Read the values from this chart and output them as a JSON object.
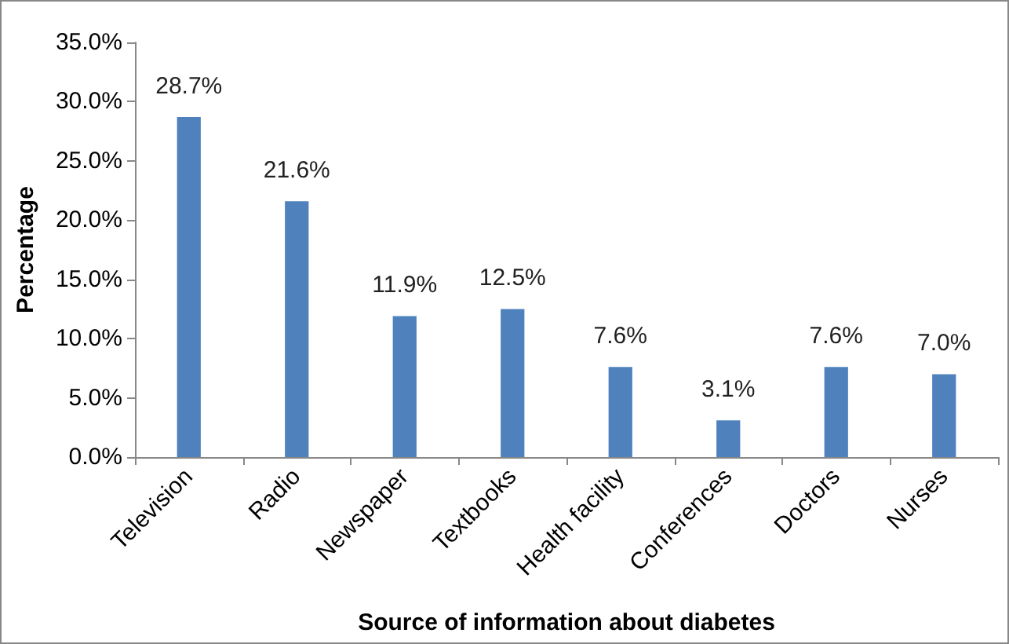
{
  "chart_data": {
    "type": "bar",
    "xlabel": "Source of information about diabetes",
    "ylabel": "Percentage",
    "categories": [
      "Television",
      "Radio",
      "Newspaper",
      "Textbooks",
      "Health facility",
      "Conferences",
      "Doctors",
      "Nurses"
    ],
    "values": [
      28.7,
      21.6,
      11.9,
      12.5,
      7.6,
      3.1,
      7.6,
      7.0
    ],
    "value_labels": [
      "28.7%",
      "21.6%",
      "11.9%",
      "12.5%",
      "7.6%",
      "3.1%",
      "7.6%",
      "7.0%"
    ],
    "color": "#4f81bd",
    "ylim": [
      0,
      35
    ],
    "yticks": [
      {
        "value": 0,
        "label": "0.0%"
      },
      {
        "value": 5,
        "label": "5.0%"
      },
      {
        "value": 10,
        "label": "10.0%"
      },
      {
        "value": 15,
        "label": "15.0%"
      },
      {
        "value": 20,
        "label": "20.0%"
      },
      {
        "value": 25,
        "label": "25.0%"
      },
      {
        "value": 30,
        "label": "30.0%"
      },
      {
        "value": 35,
        "label": "35.0%"
      }
    ],
    "grid": false
  }
}
